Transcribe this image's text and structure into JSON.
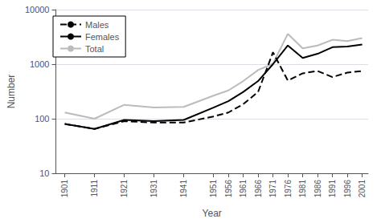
{
  "chart_data": {
    "type": "line",
    "xlabel": "Year",
    "ylabel": "Number",
    "x": [
      1901,
      1911,
      1921,
      1931,
      1941,
      1951,
      1956,
      1961,
      1966,
      1971,
      1976,
      1981,
      1986,
      1991,
      1996,
      2001
    ],
    "series": [
      {
        "name": "Males",
        "color": "#000000",
        "line_style": "dashed",
        "values": [
          80,
          65,
          90,
          85,
          85,
          110,
          130,
          185,
          310,
          1650,
          500,
          680,
          750,
          580,
          700,
          750
        ]
      },
      {
        "name": "Females",
        "color": "#000000",
        "line_style": "solid",
        "values": [
          80,
          65,
          95,
          90,
          95,
          160,
          210,
          310,
          490,
          1000,
          2200,
          1300,
          1550,
          2050,
          2100,
          2300
        ]
      },
      {
        "name": "Total",
        "color": "#bbbbbb",
        "line_style": "solid",
        "values": [
          130,
          100,
          180,
          160,
          165,
          265,
          330,
          490,
          780,
          1020,
          3600,
          1950,
          2200,
          2800,
          2650,
          3000
        ]
      }
    ],
    "xlim": [
      1898,
      2003
    ],
    "xticks": [
      1901,
      1911,
      1921,
      1931,
      1941,
      1951,
      1956,
      1961,
      1966,
      1971,
      1976,
      1981,
      1986,
      1991,
      1996,
      2001
    ],
    "ylim": [
      10,
      10000
    ],
    "yticks": [
      10,
      100,
      1000,
      10000
    ],
    "log": "y",
    "grid": true,
    "legend": "upper left"
  }
}
